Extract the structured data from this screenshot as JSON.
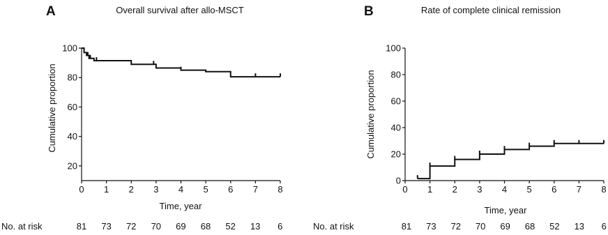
{
  "chart_data": [
    {
      "panel_letter": "A",
      "type": "line",
      "step": true,
      "title": "Overall survival after allo-MSCT",
      "xlabel": "Time, year",
      "ylabel": "Cumulative proportion",
      "xlim": [
        0,
        8
      ],
      "ylim": [
        10,
        100
      ],
      "xticks": [
        0,
        1,
        2,
        3,
        4,
        5,
        6,
        7,
        8
      ],
      "yticks": [
        20,
        40,
        60,
        80,
        100
      ],
      "series": [
        {
          "x": [
            0,
            0.1,
            0.2,
            0.3,
            0.5,
            2.0,
            3.0,
            4.0,
            5.0,
            6.0,
            8.0
          ],
          "y": [
            100,
            97,
            95,
            93,
            91.5,
            89,
            86.5,
            85,
            84,
            80.5,
            80.5
          ]
        }
      ],
      "censor_marks": {
        "x": [
          0.25,
          0.35,
          0.6,
          2.9,
          4.0,
          7.0,
          8.0
        ],
        "y": [
          95,
          93,
          91.5,
          89,
          85,
          80.5,
          80.5
        ]
      },
      "risk_label": "No. at risk",
      "risk_table": [
        "81",
        "73",
        "72",
        "70",
        "69",
        "68",
        "52",
        "13",
        "6"
      ]
    },
    {
      "panel_letter": "B",
      "type": "line",
      "step": true,
      "title": "Rate of complete clinical remission",
      "xlabel": "Time, year",
      "ylabel": "Cumulative proportion",
      "xlim": [
        0,
        8
      ],
      "ylim": [
        0,
        100
      ],
      "xticks": [
        0,
        1,
        2,
        3,
        4,
        5,
        6,
        7,
        8
      ],
      "yticks": [
        0,
        20,
        40,
        60,
        80,
        100
      ],
      "series": [
        {
          "x": [
            0.5,
            1.0,
            2.0,
            3.0,
            4.0,
            5.0,
            6.0,
            8.0
          ],
          "y": [
            1.5,
            11,
            16,
            20,
            23.5,
            26,
            28,
            28
          ]
        }
      ],
      "censor_marks": {
        "x": [
          0.5,
          1.0,
          2.0,
          3.0,
          4.0,
          5.0,
          6.0,
          7.0,
          8.0
        ],
        "y": [
          1.5,
          11,
          16,
          20,
          23.5,
          26,
          28,
          28,
          28
        ]
      },
      "risk_label": "No. at risk",
      "risk_table": [
        "81",
        "73",
        "72",
        "70",
        "69",
        "68",
        "52",
        "13",
        "6"
      ]
    }
  ]
}
